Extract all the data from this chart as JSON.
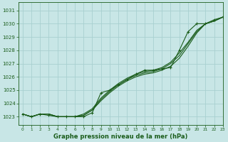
{
  "title": "Graphe pression niveau de la mer (hPa)",
  "bg_color": "#c8e6e6",
  "grid_color": "#a8d0d0",
  "line_color": "#1a5c1a",
  "xlim": [
    -0.5,
    23
  ],
  "ylim": [
    1022.4,
    1031.6
  ],
  "yticks": [
    1023,
    1024,
    1025,
    1026,
    1027,
    1028,
    1029,
    1030,
    1031
  ],
  "xticks": [
    0,
    1,
    2,
    3,
    4,
    5,
    6,
    7,
    8,
    9,
    10,
    11,
    12,
    13,
    14,
    15,
    16,
    17,
    18,
    19,
    20,
    21,
    22,
    23
  ],
  "series_smooth": [
    [
      1023.2,
      1023.0,
      1023.2,
      1023.2,
      1023.0,
      1023.0,
      1023.0,
      1023.1,
      1023.5,
      1024.2,
      1024.8,
      1025.3,
      1025.7,
      1026.0,
      1026.2,
      1026.3,
      1026.5,
      1026.8,
      1027.4,
      1028.3,
      1029.3,
      1030.0,
      1030.2,
      1030.5
    ],
    [
      1023.2,
      1023.0,
      1023.2,
      1023.2,
      1023.0,
      1023.0,
      1023.0,
      1023.1,
      1023.5,
      1024.3,
      1024.9,
      1025.4,
      1025.8,
      1026.1,
      1026.3,
      1026.4,
      1026.6,
      1027.0,
      1027.6,
      1028.5,
      1029.4,
      1030.0,
      1030.2,
      1030.5
    ],
    [
      1023.2,
      1023.0,
      1023.2,
      1023.2,
      1023.0,
      1023.0,
      1023.0,
      1023.2,
      1023.6,
      1024.4,
      1025.0,
      1025.5,
      1025.9,
      1026.2,
      1026.4,
      1026.5,
      1026.7,
      1027.1,
      1027.8,
      1028.6,
      1029.5,
      1030.0,
      1030.2,
      1030.5
    ]
  ],
  "marker_series": [
    1023.2,
    1023.0,
    1023.2,
    1023.1,
    1023.0,
    1023.0,
    1023.0,
    1023.0,
    1023.3,
    1024.8,
    1025.0,
    1025.4,
    1025.8,
    1026.2,
    1026.5,
    1026.5,
    1026.6,
    1026.7,
    1028.0,
    1029.4,
    1030.0,
    1030.0,
    1030.3,
    1030.5
  ],
  "title_fontsize": 6.0,
  "tick_fontsize": 5.0
}
